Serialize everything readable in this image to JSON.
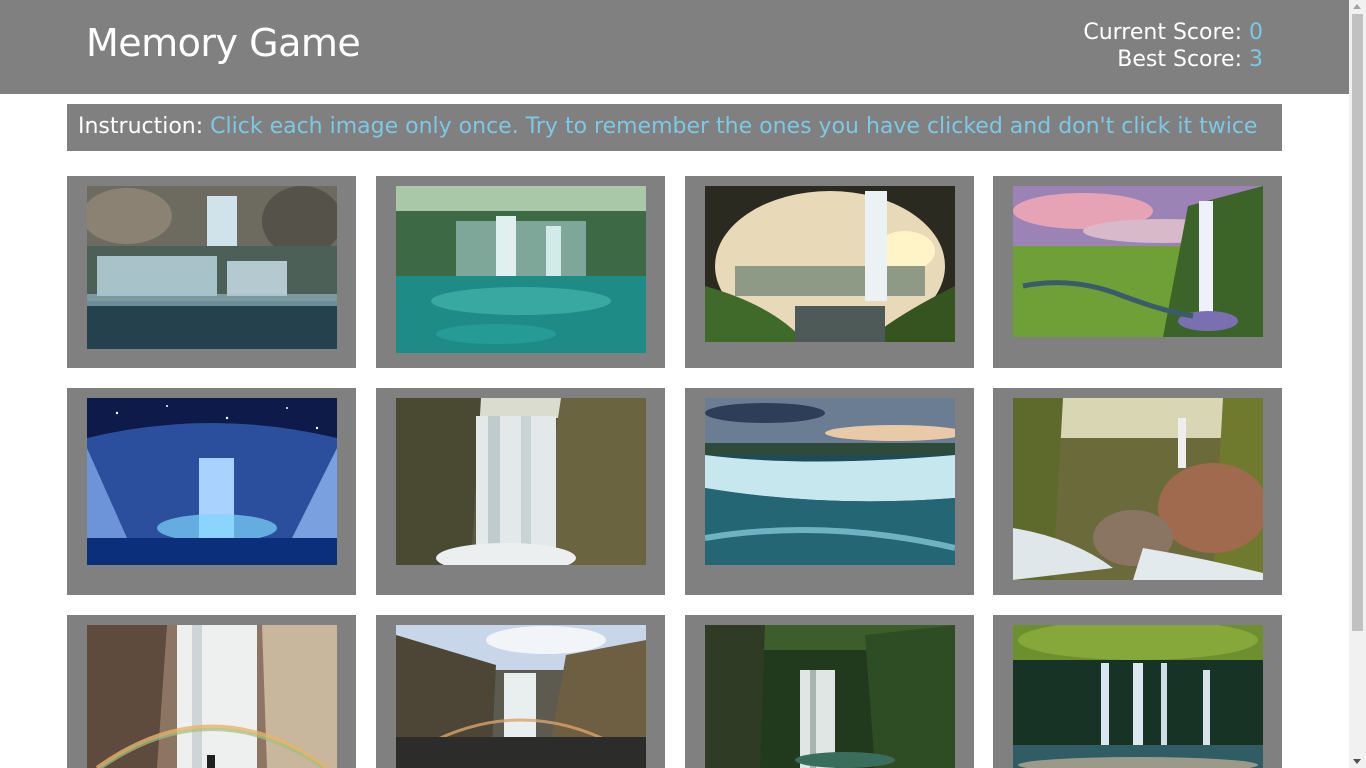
{
  "header": {
    "title": "Memory Game",
    "current_score_label": "Current Score: ",
    "current_score": "0",
    "best_score_label": "Best Score: ",
    "best_score": "3"
  },
  "instruction": {
    "label": "Instruction: ",
    "text": "Click each image only once. Try to remember the ones you have clicked and don't click it twice"
  },
  "colors": {
    "panel_gray": "#808080",
    "accent_blue": "#7ec8e3",
    "text_white": "#ffffff"
  },
  "cards": [
    {
      "name": "tiered-cascade-waterfall-image"
    },
    {
      "name": "turquoise-pool-waterfall-image"
    },
    {
      "name": "cave-view-waterfall-image"
    },
    {
      "name": "sunset-valley-waterfall-image"
    },
    {
      "name": "ice-cave-night-waterfall-image"
    },
    {
      "name": "cliff-waterfall-image"
    },
    {
      "name": "horseshoe-falls-image"
    },
    {
      "name": "rocky-forest-waterfall-image"
    },
    {
      "name": "rainbow-mist-waterfall-image"
    },
    {
      "name": "canyon-rainbow-waterfall-image"
    },
    {
      "name": "jungle-waterfall-image"
    },
    {
      "name": "forest-pool-waterfall-image"
    }
  ]
}
